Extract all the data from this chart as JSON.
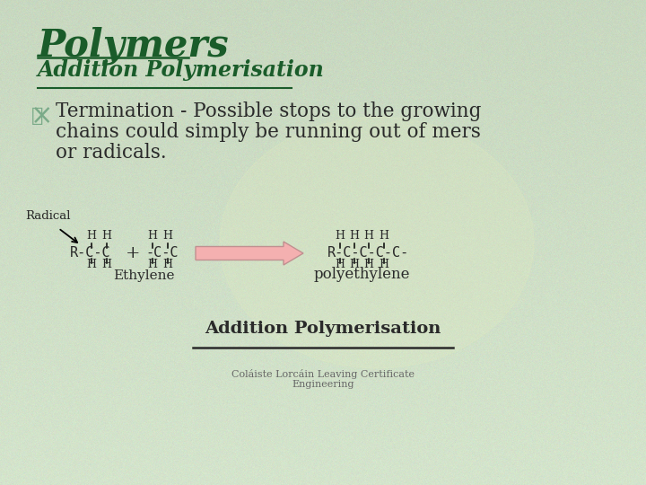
{
  "title": "Polymers",
  "subtitle": "Addition Polymerisation",
  "body_line1": "Termination - Possible stops to the growing",
  "body_line2": "chains could simply be running out of mers",
  "body_line3": "or radicals.",
  "title_color": "#1a5c2a",
  "subtitle_color": "#1a5c2a",
  "body_color": "#2a2a2a",
  "bg_color": "#c8d8c0",
  "footer_text1": "Coláiste Lorcáin Leaving Certificate",
  "footer_text2": "Engineering",
  "bottom_label": "Addition Polymerisation",
  "radical_label": "Radical",
  "ethylene_label": "Ethylene",
  "polyethylene_label": "polyethylene",
  "arrow_color": "#f4b0b0",
  "arrow_edge_color": "#c09090",
  "ribbon_color": "#7aaa88"
}
